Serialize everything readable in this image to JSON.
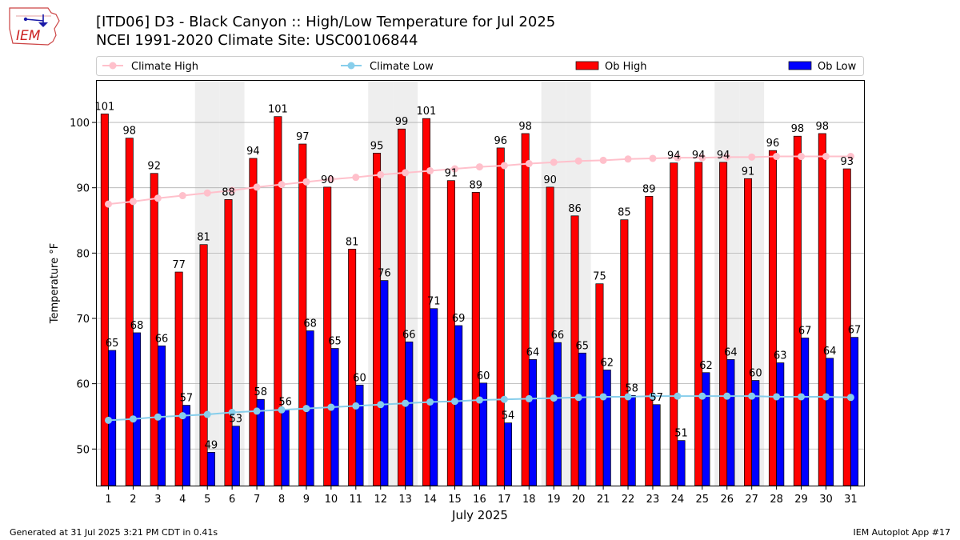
{
  "header": {
    "title_line1": "[ITD06] D3 - Black Canyon  :: High/Low Temperature for Jul 2025",
    "title_line2": "NCEI 1991-2020 Climate Site: USC00106844",
    "logo_text": "IEM"
  },
  "footer": {
    "generated": "Generated at 31 Jul 2025 3:21 PM CDT in 0.41s",
    "app": "IEM Autoplot App #17"
  },
  "colors": {
    "ob_high": "#ff0000",
    "ob_low": "#0000ff",
    "climate_high": "#ffc0cb",
    "climate_low": "#87ceeb",
    "weekend_shade": "#eeeeee",
    "grid": "#b0b0b0"
  },
  "chart_data": {
    "type": "bar",
    "xlabel": "July 2025",
    "ylabel": "Temperature °F",
    "ylim": [
      44.4,
      106.5
    ],
    "yticks": [
      50,
      60,
      70,
      80,
      90,
      100
    ],
    "grid": "horizontal",
    "legend_position": "top",
    "categories": [
      "1",
      "2",
      "3",
      "4",
      "5",
      "6",
      "7",
      "8",
      "9",
      "10",
      "11",
      "12",
      "13",
      "14",
      "15",
      "16",
      "17",
      "18",
      "19",
      "20",
      "21",
      "22",
      "23",
      "24",
      "25",
      "26",
      "27",
      "28",
      "29",
      "30",
      "31"
    ],
    "weekend_days": [
      5,
      6,
      12,
      13,
      19,
      20,
      26,
      27
    ],
    "series": [
      {
        "name": "Climate High",
        "kind": "line",
        "values": [
          87.5,
          87.9,
          88.4,
          88.8,
          89.2,
          89.6,
          90.1,
          90.5,
          90.9,
          91.3,
          91.6,
          92.0,
          92.3,
          92.6,
          92.9,
          93.2,
          93.4,
          93.7,
          93.9,
          94.1,
          94.2,
          94.4,
          94.5,
          94.6,
          94.6,
          94.7,
          94.7,
          94.8,
          94.8,
          94.8,
          94.8
        ]
      },
      {
        "name": "Climate Low",
        "kind": "line",
        "values": [
          54.4,
          54.6,
          54.9,
          55.1,
          55.3,
          55.6,
          55.8,
          56.0,
          56.2,
          56.4,
          56.6,
          56.8,
          57.0,
          57.2,
          57.3,
          57.5,
          57.6,
          57.7,
          57.8,
          57.9,
          58.0,
          58.0,
          58.1,
          58.1,
          58.1,
          58.1,
          58.1,
          58.0,
          58.0,
          58.0,
          57.9
        ]
      },
      {
        "name": "Ob High",
        "kind": "bar",
        "values": [
          101,
          98,
          92,
          77,
          81,
          88,
          94,
          101,
          97,
          90,
          81,
          95,
          99,
          101,
          91,
          89,
          96,
          98,
          90,
          86,
          75,
          85,
          89,
          94,
          94,
          94,
          91,
          96,
          98,
          98,
          93
        ],
        "plotted": [
          101.3,
          97.6,
          92.2,
          77.1,
          81.3,
          88.2,
          94.5,
          100.9,
          96.7,
          90.1,
          80.6,
          95.3,
          99.0,
          100.6,
          91.1,
          89.3,
          96.1,
          98.3,
          90.1,
          85.7,
          75.3,
          85.1,
          88.7,
          93.8,
          93.9,
          93.9,
          91.4,
          95.7,
          97.9,
          98.3,
          92.9
        ]
      },
      {
        "name": "Ob Low",
        "kind": "bar",
        "values": [
          65,
          68,
          66,
          57,
          49,
          53,
          58,
          56,
          68,
          65,
          60,
          76,
          66,
          71,
          69,
          60,
          54,
          64,
          66,
          65,
          62,
          58,
          57,
          51,
          62,
          64,
          60,
          63,
          67,
          64,
          67
        ],
        "plotted": [
          65.1,
          67.8,
          65.8,
          56.7,
          49.5,
          53.5,
          57.6,
          56.1,
          68.1,
          65.4,
          59.8,
          75.8,
          66.4,
          71.5,
          68.9,
          60.1,
          54.0,
          63.7,
          66.3,
          64.7,
          62.1,
          58.2,
          56.8,
          51.3,
          61.7,
          63.7,
          60.5,
          63.2,
          67.0,
          63.9,
          67.1
        ]
      }
    ]
  }
}
